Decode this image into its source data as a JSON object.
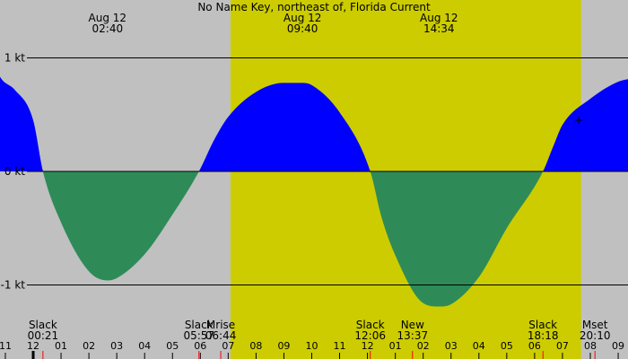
{
  "chart_data": {
    "type": "area",
    "title": "No Name Key, northeast of, Florida Current",
    "ylim": [
      -1.3,
      1.0
    ],
    "colors": {
      "background": "#c0c0c0",
      "daylight": "#cccc00",
      "flood": "#0000ff",
      "ebb": "#2e8b57",
      "line": "#000000",
      "tick_major": "#000000",
      "tick_minor": "#ff0000"
    },
    "daylight": {
      "start": "07:05",
      "end": "19:40"
    },
    "y_ticks": [
      {
        "label": "1 kt",
        "value": 1
      },
      {
        "label": "0 kt",
        "value": 0
      },
      {
        "label": "-1 kt",
        "value": -1
      }
    ],
    "top_labels": [
      {
        "date": "Aug 12",
        "time": "02:40"
      },
      {
        "date": "Aug 12",
        "time": "09:40"
      },
      {
        "date": "Aug 12",
        "time": "14:34"
      }
    ],
    "events": [
      {
        "label": "Slack",
        "time": "00:21"
      },
      {
        "label": "Slack",
        "time": "05:57"
      },
      {
        "label": "Mrise",
        "time": "06:44"
      },
      {
        "label": "Slack",
        "time": "12:06"
      },
      {
        "label": "New",
        "time": "13:37"
      },
      {
        "label": "Slack",
        "time": "18:18"
      },
      {
        "label": "Mset",
        "time": "20:10"
      }
    ],
    "x_ticks": [
      "11",
      "12",
      "01",
      "02",
      "03",
      "04",
      "05",
      "06",
      "07",
      "08",
      "09",
      "10",
      "11",
      "12",
      "01",
      "02",
      "03",
      "04",
      "05",
      "06",
      "07",
      "08",
      "09"
    ],
    "series": [
      {
        "x": [
          "23:00",
          "23:20",
          "00:00",
          "00:21",
          "01:00",
          "02:00",
          "02:40",
          "03:00",
          "04:00",
          "05:00",
          "05:57",
          "06:30",
          "07:00",
          "08:00",
          "09:00",
          "09:40",
          "10:00",
          "11:00",
          "12:06",
          "12:30",
          "13:00",
          "14:00",
          "14:34",
          "15:00",
          "16:00",
          "17:00",
          "18:18",
          "18:40",
          "19:00",
          "20:00",
          "21:00",
          "21:30"
        ],
        "values": [
          0.78,
          0.72,
          0.45,
          0.0,
          -0.45,
          -0.88,
          -0.96,
          -0.94,
          -0.73,
          -0.38,
          0.0,
          0.28,
          0.48,
          0.7,
          0.78,
          0.78,
          0.76,
          0.52,
          0.0,
          -0.4,
          -0.74,
          -1.16,
          -1.19,
          -1.17,
          -0.93,
          -0.5,
          0.0,
          0.22,
          0.41,
          0.64,
          0.79,
          0.82
        ]
      }
    ],
    "marker": {
      "symbol": "+",
      "x": "19:35",
      "y": 0.46
    }
  }
}
